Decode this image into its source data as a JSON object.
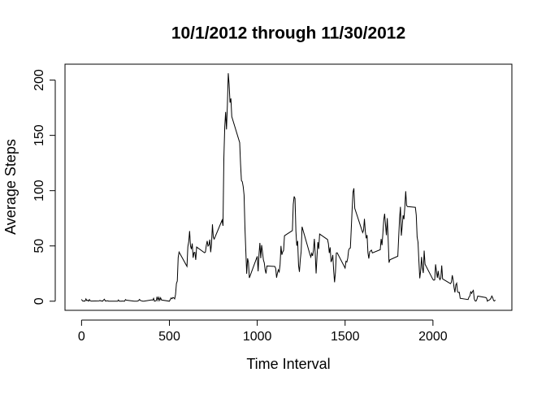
{
  "chart_data": {
    "type": "line",
    "title": "10/1/2012 through 11/30/2012",
    "x_label": "Time Interval",
    "y_label": "Average Steps",
    "color": "#000000",
    "xlim": [
      -94.2,
      2449.2
    ],
    "ylim": [
      -8.25,
      214.4
    ],
    "xticks": [
      0,
      500,
      1000,
      1500,
      2000
    ],
    "yticks": [
      0,
      50,
      100,
      150,
      200
    ],
    "x": [
      0,
      5,
      10,
      15,
      20,
      25,
      30,
      35,
      40,
      45,
      50,
      55,
      100,
      105,
      110,
      115,
      120,
      125,
      130,
      135,
      140,
      145,
      150,
      155,
      200,
      205,
      210,
      215,
      220,
      225,
      230,
      235,
      240,
      245,
      250,
      255,
      300,
      305,
      310,
      315,
      320,
      325,
      330,
      335,
      340,
      345,
      350,
      355,
      400,
      405,
      410,
      415,
      420,
      425,
      430,
      435,
      440,
      445,
      450,
      455,
      500,
      505,
      510,
      515,
      520,
      525,
      530,
      535,
      540,
      545,
      550,
      555,
      600,
      605,
      610,
      615,
      620,
      625,
      630,
      635,
      640,
      645,
      650,
      655,
      700,
      705,
      710,
      715,
      720,
      725,
      730,
      735,
      740,
      745,
      750,
      755,
      800,
      805,
      810,
      815,
      820,
      825,
      830,
      835,
      840,
      845,
      850,
      855,
      900,
      905,
      910,
      915,
      920,
      925,
      930,
      935,
      940,
      945,
      950,
      955,
      1000,
      1005,
      1010,
      1015,
      1020,
      1025,
      1030,
      1035,
      1040,
      1045,
      1050,
      1055,
      1100,
      1105,
      1110,
      1115,
      1120,
      1125,
      1130,
      1135,
      1140,
      1145,
      1150,
      1155,
      1200,
      1205,
      1210,
      1215,
      1220,
      1225,
      1230,
      1235,
      1240,
      1245,
      1250,
      1255,
      1300,
      1305,
      1310,
      1315,
      1320,
      1325,
      1330,
      1335,
      1340,
      1345,
      1350,
      1355,
      1400,
      1405,
      1410,
      1415,
      1420,
      1425,
      1430,
      1435,
      1440,
      1445,
      1450,
      1455,
      1500,
      1505,
      1510,
      1515,
      1520,
      1525,
      1530,
      1535,
      1540,
      1545,
      1550,
      1555,
      1600,
      1605,
      1610,
      1615,
      1620,
      1625,
      1630,
      1635,
      1640,
      1645,
      1650,
      1655,
      1700,
      1705,
      1710,
      1715,
      1720,
      1725,
      1730,
      1735,
      1740,
      1745,
      1750,
      1755,
      1800,
      1805,
      1810,
      1815,
      1820,
      1825,
      1830,
      1835,
      1840,
      1845,
      1850,
      1855,
      1900,
      1905,
      1910,
      1915,
      1920,
      1925,
      1930,
      1935,
      1940,
      1945,
      1950,
      1955,
      2000,
      2005,
      2010,
      2015,
      2020,
      2025,
      2030,
      2035,
      2040,
      2045,
      2050,
      2055,
      2100,
      2105,
      2110,
      2115,
      2120,
      2125,
      2130,
      2135,
      2140,
      2145,
      2150,
      2155,
      2200,
      2205,
      2210,
      2215,
      2220,
      2225,
      2230,
      2235,
      2240,
      2245,
      2250,
      2255,
      2300,
      2305,
      2310,
      2315,
      2320,
      2325,
      2330,
      2335,
      2340,
      2345,
      2350,
      2355
    ],
    "values": [
      1.7,
      0.3,
      0.1,
      0.2,
      0.1,
      2.1,
      0.5,
      0.9,
      0,
      1.5,
      0.3,
      0.1,
      0.3,
      0.7,
      0.2,
      0.3,
      0,
      1.1,
      1.8,
      0.2,
      0.2,
      0.4,
      0.3,
      0,
      0,
      0,
      1.1,
      0,
      0,
      0.1,
      0,
      0.2,
      0,
      0,
      1.5,
      0.9,
      0,
      0,
      0,
      0,
      0.2,
      0.6,
      1.6,
      0.6,
      0.5,
      0.1,
      0,
      0,
      1.2,
      0.9,
      2.6,
      0,
      0.3,
      0.4,
      4.1,
      0.7,
      3.5,
      0.8,
      3.1,
      1.1,
      0,
      1.6,
      3,
      2.2,
      3.3,
      3,
      2.1,
      6.1,
      16,
      18.3,
      39.5,
      44.5,
      31.5,
      49.3,
      53.8,
      63.5,
      50,
      47.1,
      52.2,
      39.3,
      44,
      44.2,
      37.4,
      49,
      43.8,
      44.4,
      50.5,
      54.5,
      49.9,
      51,
      55.7,
      44.3,
      52.3,
      69.5,
      57.8,
      56.2,
      73.4,
      68.2,
      129.4,
      157.5,
      171.2,
      155.4,
      177.3,
      206.2,
      195.9,
      179.6,
      183.4,
      167,
      143.5,
      124,
      109.1,
      108.1,
      103.7,
      96,
      66.2,
      45.2,
      24.8,
      38.8,
      35,
      21.1,
      40.6,
      27,
      42.4,
      52.7,
      38.9,
      50.8,
      44.3,
      37.4,
      34.7,
      28.3,
      25.1,
      31.9,
      31.4,
      29.7,
      21.3,
      25.5,
      28.4,
      26.5,
      33.3,
      50,
      42,
      44.6,
      46,
      59.2,
      63.9,
      87.7,
      94.8,
      92.8,
      63.4,
      50.2,
      54.5,
      32.4,
      26.5,
      37.7,
      45.1,
      67.3,
      42.3,
      39.9,
      43.3,
      41,
      46.2,
      56.4,
      42.8,
      25.1,
      40,
      53.5,
      47.3,
      60.8,
      55.8,
      52,
      43.6,
      48.7,
      35.5,
      37.5,
      41.8,
      27.5,
      17.1,
      26.1,
      43.6,
      43.8,
      30,
      36.1,
      35.5,
      38.8,
      46,
      47.8,
      48.1,
      65.3,
      82.9,
      98.7,
      102.1,
      84,
      62.1,
      64.1,
      74.5,
      63.2,
      56.9,
      59.8,
      43.9,
      38.6,
      44.7,
      45.5,
      46.2,
      43.7,
      46.6,
      56.3,
      50.7,
      61.2,
      73.4,
      79.1,
      68.9,
      59.7,
      75.1,
      56.5,
      34.8,
      37.5,
      40.7,
      58,
      74.7,
      85.3,
      59.3,
      67.8,
      77.7,
      74.2,
      85.3,
      99.5,
      86.6,
      85.6,
      84.9,
      77.8,
      58,
      53.4,
      36.3,
      20.7,
      27.4,
      40,
      30.2,
      25.5,
      45.7,
      33.5,
      19.6,
      19,
      19.3,
      33.3,
      26.8,
      21.2,
      27.3,
      21.3,
      19.5,
      21.3,
      32.3,
      20.2,
      15.9,
      17.2,
      23.5,
      19.2,
      12.5,
      8,
      14.7,
      16.3,
      8.7,
      7.8,
      8.1,
      2.6,
      1.5,
      3.7,
      4.8,
      8.5,
      7.1,
      8.7,
      9.8,
      2.2,
      0.3,
      0.1,
      1.6,
      4.6,
      3.3,
      2.8,
      0,
      0.8,
      1,
      1.6,
      2.6,
      4.7,
      3.3,
      0.6,
      0.2,
      1.1
    ]
  }
}
